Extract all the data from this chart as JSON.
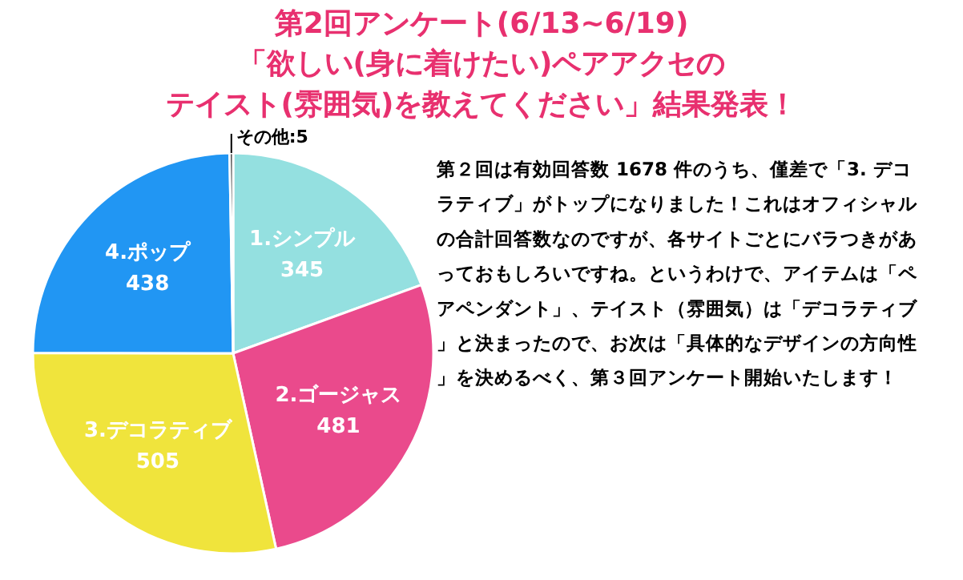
{
  "chart_data": {
    "type": "pie",
    "title": "第2回アンケート(6/13~6/19)\n「欲しい(身に着けたい)ペアアクセのテイスト(雰囲気)を教えてください」結果発表！",
    "categories": [
      "1.シンプル",
      "2.ゴージャス",
      "3.デコラティブ",
      "4.ポップ",
      "その他"
    ],
    "values": [
      345,
      481,
      505,
      438,
      5
    ],
    "colors": [
      "#94e0e0",
      "#ea4a8c",
      "#f0e43c",
      "#2196f3",
      "#333333"
    ],
    "value_labels": [
      "345",
      "481",
      "505",
      "438",
      ":5"
    ],
    "annotations": [
      "第２回は有効回答数 1678 件のうち、僅差で「3. デコラティブ」がトップになりました！これはオフィシャルの合計回答数なのですが、各サイトごとにバラつきがあっておもしろいですね。というわけで、アイテムは「ペアペンダント」、テイスト（雰囲気）は「デコラティブ」と決まったので、お次は「具体的なデザインの方向性」を決めるべく、第３回アンケート開始いたします！"
    ]
  }
}
